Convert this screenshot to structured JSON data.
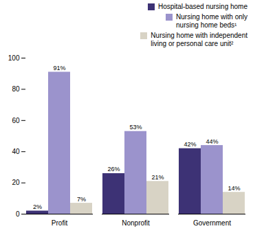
{
  "chart_data": {
    "type": "bar",
    "categories": [
      "Profit",
      "Nonprofit",
      "Government"
    ],
    "series": [
      {
        "name": "Hospital-based nursing home",
        "color": "#3d3275",
        "values": [
          2,
          26,
          42
        ],
        "value_labels": [
          "2%",
          "26%",
          "42%"
        ]
      },
      {
        "name": "Nursing home with only\nnursing home beds¹",
        "color": "#9b93cc",
        "values": [
          91,
          53,
          44
        ],
        "value_labels": [
          "91%",
          "53%",
          "44%"
        ]
      },
      {
        "name": "Nursing home with independent\nliving or personal care unit²",
        "color": "#d8d3c5",
        "values": [
          7,
          21,
          14
        ],
        "value_labels": [
          "7%",
          "21%",
          "14%"
        ]
      }
    ],
    "ylim": [
      0,
      100
    ],
    "yticks": [
      0,
      20,
      40,
      60,
      80,
      100
    ],
    "grid": false,
    "legend": "upper right",
    "data_labels": true
  }
}
